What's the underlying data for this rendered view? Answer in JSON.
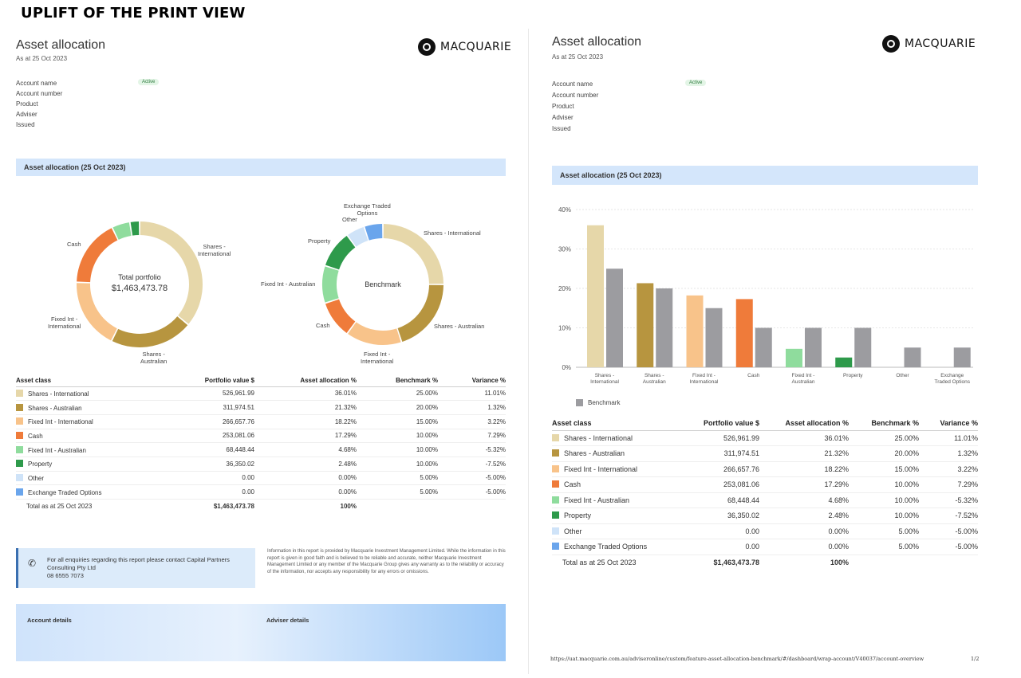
{
  "banner": "UPLIFT OF THE PRINT VIEW",
  "report": {
    "title": "Asset allocation",
    "as_at": "As at 25 Oct 2023",
    "logo_text": "MACQUARIE",
    "fields": [
      "Account name",
      "Account number",
      "Product",
      "Adviser",
      "Issued"
    ],
    "status_badge": "Active",
    "section_title": "Asset allocation (25 Oct 2023)"
  },
  "donut": {
    "total_label": "Total portfolio",
    "total_value": "$1,463,473.78",
    "benchmark_label": "Benchmark"
  },
  "donut_labels": {
    "shares_international": "Shares - International",
    "shares_international_l1": "Shares -",
    "shares_international_l2": "International",
    "shares_australian_l1": "Shares -",
    "shares_australian_l2": "Australian",
    "shares_australian": "Shares - Australian",
    "fixed_int_international_l1": "Fixed Int -",
    "fixed_int_international_l2": "International",
    "fixed_int_international": "Fixed Int -",
    "fixed_int_international_b": "International",
    "cash": "Cash",
    "fixed_int_australian": "Fixed Int - Australian",
    "property": "Property",
    "other": "Other",
    "etf_l1": "Exchange Traded",
    "etf_l2": "Options"
  },
  "table": {
    "headers": [
      "Asset class",
      "Portfolio value $",
      "Asset allocation %",
      "Benchmark %",
      "Variance %"
    ],
    "rows": [
      {
        "name": "Shares - International",
        "value": "526,961.99",
        "alloc": "36.01%",
        "bench": "25.00%",
        "var": "11.01%"
      },
      {
        "name": "Shares - Australian",
        "value": "311,974.51",
        "alloc": "21.32%",
        "bench": "20.00%",
        "var": "1.32%"
      },
      {
        "name": "Fixed Int - International",
        "value": "266,657.76",
        "alloc": "18.22%",
        "bench": "15.00%",
        "var": "3.22%"
      },
      {
        "name": "Cash",
        "value": "253,081.06",
        "alloc": "17.29%",
        "bench": "10.00%",
        "var": "7.29%"
      },
      {
        "name": "Fixed Int - Australian",
        "value": "68,448.44",
        "alloc": "4.68%",
        "bench": "10.00%",
        "var": "-5.32%"
      },
      {
        "name": "Property",
        "value": "36,350.02",
        "alloc": "2.48%",
        "bench": "10.00%",
        "var": "-7.52%"
      },
      {
        "name": "Other",
        "value": "0.00",
        "alloc": "0.00%",
        "bench": "5.00%",
        "var": "-5.00%"
      },
      {
        "name": "Exchange Traded Options",
        "value": "0.00",
        "alloc": "0.00%",
        "bench": "5.00%",
        "var": "-5.00%"
      }
    ],
    "total": {
      "name": "Total as at 25 Oct 2023",
      "value": "$1,463,473.78",
      "alloc": "100%"
    }
  },
  "colors": {
    "shares_international": "#e6d7a9",
    "shares_australian": "#b7953f",
    "fixed_int_international": "#f8c38a",
    "cash": "#ef7b3a",
    "fixed_int_australian": "#8fdc9d",
    "property": "#2e9a4b",
    "other": "#cfe3f8",
    "etf": "#6aa5ec",
    "benchmark": "#9c9ca0"
  },
  "contact": {
    "text": "For all enquiries regarding this report please contact Capital Partners Consulting Pty Ltd",
    "phone": "08 6555 7073"
  },
  "disclaimer": "Information in this report is provided by Macquarie Investment Management Limited. While the information in this report is given in good faith and is believed to be reliable and accurate, neither Macquarie Investment Management Limited or any member of the Macquarie Group gives any warranty as to the reliability or accuracy of the information, nor accepts any responsibility for any errors or omissions.",
  "details": {
    "account": "Account details",
    "adviser": "Adviser details"
  },
  "footer": {
    "url": "https://uat.macquarie.com.au/adviseronline/custom/feature-asset-allocation-benchmark/#/dashboard/wrap-account/V40037/account-overview",
    "page": "1/2"
  },
  "chart_data": {
    "type": "bar",
    "categories": [
      "Shares - International",
      "Shares - Australian",
      "Fixed Int - International",
      "Cash",
      "Fixed Int - Australian",
      "Property",
      "Other",
      "Exchange Traded Options"
    ],
    "category_label_lines": [
      [
        "Shares -",
        "International"
      ],
      [
        "Shares -",
        "Australian"
      ],
      [
        "Fixed Int -",
        "International"
      ],
      [
        "Cash"
      ],
      [
        "Fixed Int -",
        "Australian"
      ],
      [
        "Property"
      ],
      [
        "Other"
      ],
      [
        "Exchange",
        "Traded Options"
      ]
    ],
    "series": [
      {
        "values": [
          36.01,
          21.32,
          18.22,
          17.29,
          4.68,
          2.48,
          0,
          0
        ]
      },
      {
        "name": "Benchmark",
        "values": [
          25,
          20,
          15,
          10,
          10,
          10,
          5,
          5
        ]
      }
    ],
    "ylim": [
      0,
      40
    ],
    "yticks": [
      "0%",
      "10%",
      "20%",
      "30%",
      "40%"
    ],
    "grid": true,
    "legend": "bottom-left"
  }
}
